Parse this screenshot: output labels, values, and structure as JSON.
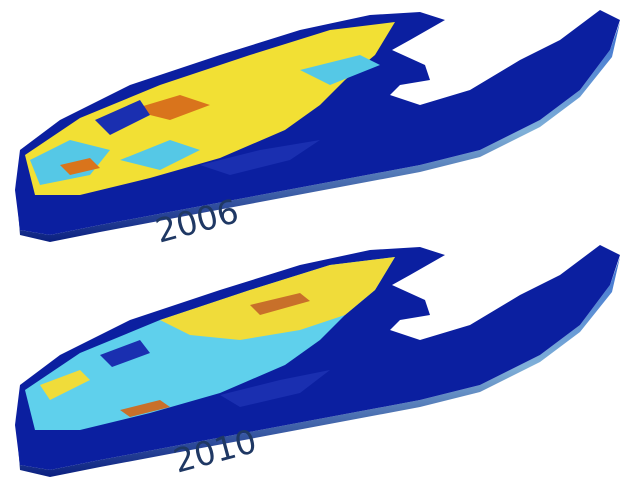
{
  "panels": [
    {
      "label": "2006"
    },
    {
      "label": "2010"
    }
  ]
}
